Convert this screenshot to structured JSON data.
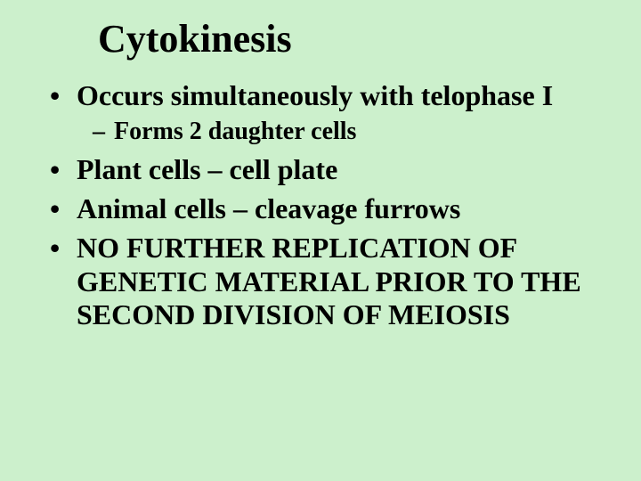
{
  "background_color": "#ccf0cc",
  "text_color": "#000000",
  "font_family": "Times New Roman",
  "title": {
    "text": "Cytokinesis",
    "fontsize": 44,
    "bold": true
  },
  "bullets": [
    {
      "text": "Occurs simultaneously with telophase I",
      "fontsize": 32,
      "bold": true,
      "sub": [
        {
          "text": "Forms 2 daughter cells",
          "fontsize": 28,
          "bold": true
        }
      ]
    },
    {
      "text": "Plant cells – cell plate",
      "fontsize": 32,
      "bold": true
    },
    {
      "text": "Animal cells – cleavage furrows",
      "fontsize": 32,
      "bold": true
    },
    {
      "text": "NO FURTHER REPLICATION OF GENETIC MATERIAL PRIOR TO THE SECOND DIVISION OF MEIOSIS",
      "fontsize": 32,
      "bold": true
    }
  ]
}
